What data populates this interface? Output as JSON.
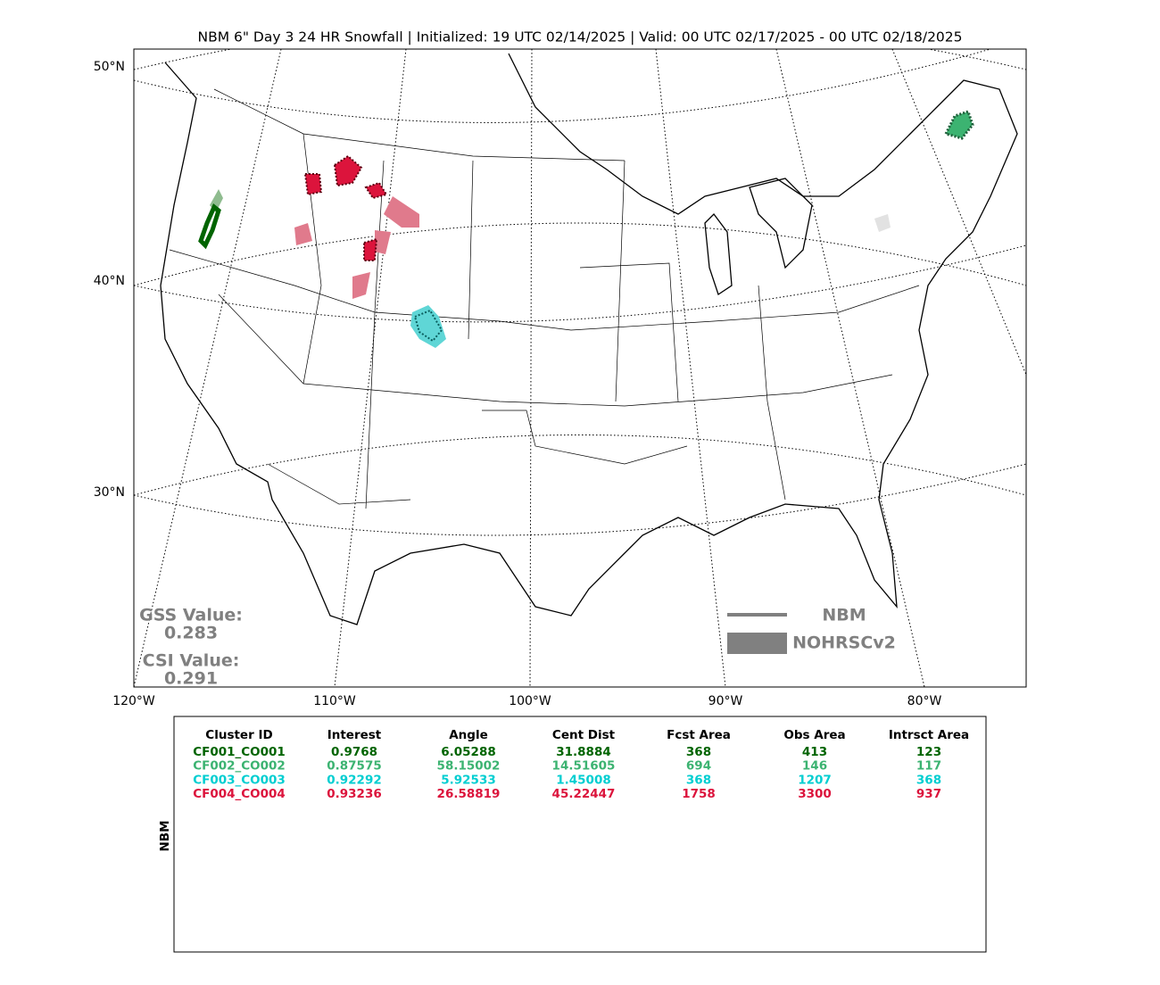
{
  "title": "NBM 6\" Day 3 24 HR Snowfall | Initialized: 19 UTC 02/14/2025 | Valid: 00 UTC 02/17/2025 - 00 UTC 02/18/2025",
  "map": {
    "lat_labels": [
      "50°N",
      "40°N",
      "30°N"
    ],
    "lon_labels": [
      "120°W",
      "110°W",
      "100°W",
      "90°W",
      "80°W"
    ],
    "stats": [
      {
        "label": "GSS Value:",
        "value": "0.283"
      },
      {
        "label": "CSI Value:",
        "value": "0.291"
      }
    ],
    "legend": [
      "NBM",
      "NOHRSCv2"
    ]
  },
  "table": {
    "side_label": "NBM",
    "columns": [
      "Cluster ID",
      "Interest",
      "Angle",
      "Cent Dist",
      "Fcst Area",
      "Obs Area",
      "Intrsct Area"
    ],
    "rows": [
      {
        "color": "#006400",
        "cells": [
          "CF001_CO001",
          "0.9768",
          "6.05288",
          "31.8884",
          "368",
          "413",
          "123"
        ]
      },
      {
        "color": "#3cb371",
        "cells": [
          "CF002_CO002",
          "0.87575",
          "58.15002",
          "14.51605",
          "694",
          "146",
          "117"
        ]
      },
      {
        "color": "#00ced1",
        "cells": [
          "CF003_CO003",
          "0.92292",
          "5.92533",
          "1.45008",
          "368",
          "1207",
          "368"
        ]
      },
      {
        "color": "#dc143c",
        "cells": [
          "CF004_CO004",
          "0.93236",
          "26.58819",
          "45.22447",
          "1758",
          "3300",
          "937"
        ]
      }
    ]
  }
}
